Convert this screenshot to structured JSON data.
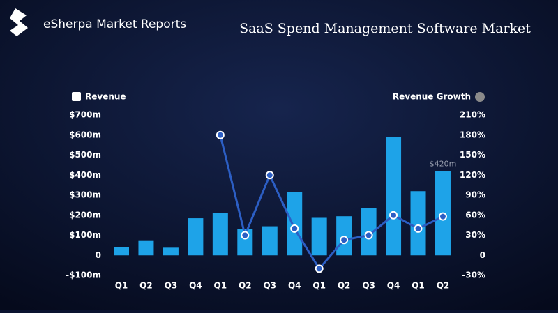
{
  "header": {
    "brand": "eSherpa Market Reports"
  },
  "chart_data": {
    "type": "bar",
    "title": "SaaS Spend Management Software Market",
    "categories": [
      "Q1",
      "Q2",
      "Q3",
      "Q4",
      "Q1",
      "Q2",
      "Q3",
      "Q4",
      "Q1",
      "Q2",
      "Q3",
      "Q4",
      "Q1",
      "Q2"
    ],
    "series": [
      {
        "name": "Revenue",
        "type": "bar",
        "color": "#1ea3e8",
        "values": [
          40,
          75,
          38,
          185,
          210,
          130,
          145,
          315,
          187,
          195,
          235,
          590,
          320,
          420
        ],
        "value_labels": [
          null,
          null,
          null,
          null,
          null,
          null,
          null,
          null,
          null,
          null,
          null,
          null,
          null,
          "$420m"
        ]
      },
      {
        "name": "Revenue Growth",
        "type": "line",
        "axis": "y2",
        "color": "#2c5ec4",
        "values": [
          null,
          null,
          null,
          null,
          180,
          30,
          120,
          40,
          -20,
          23,
          30,
          60,
          40,
          58
        ]
      }
    ],
    "ylim": [
      -100,
      700
    ],
    "yticks": [
      {
        "value": -100,
        "label": "-$100m"
      },
      0,
      {
        "value": 100,
        "label": "$100m"
      },
      {
        "value": 200,
        "label": "$200m"
      },
      {
        "value": 300,
        "label": "$300m"
      },
      {
        "value": 400,
        "label": "$400m"
      },
      {
        "value": 500,
        "label": "$500m"
      },
      {
        "value": 600,
        "label": "$600m"
      },
      {
        "value": 700,
        "label": "$700m"
      }
    ],
    "y2lim": [
      -30,
      210
    ],
    "y2ticks": [
      {
        "value": -30,
        "label": "-30%"
      },
      0,
      {
        "value": 30,
        "label": "30%"
      },
      {
        "value": 60,
        "label": "60%"
      },
      {
        "value": 90,
        "label": "90%"
      },
      {
        "value": 120,
        "label": "120%"
      },
      {
        "value": 150,
        "label": "150%"
      },
      {
        "value": 180,
        "label": "180%"
      },
      {
        "value": 210,
        "label": "210%"
      }
    ],
    "grid": false
  }
}
